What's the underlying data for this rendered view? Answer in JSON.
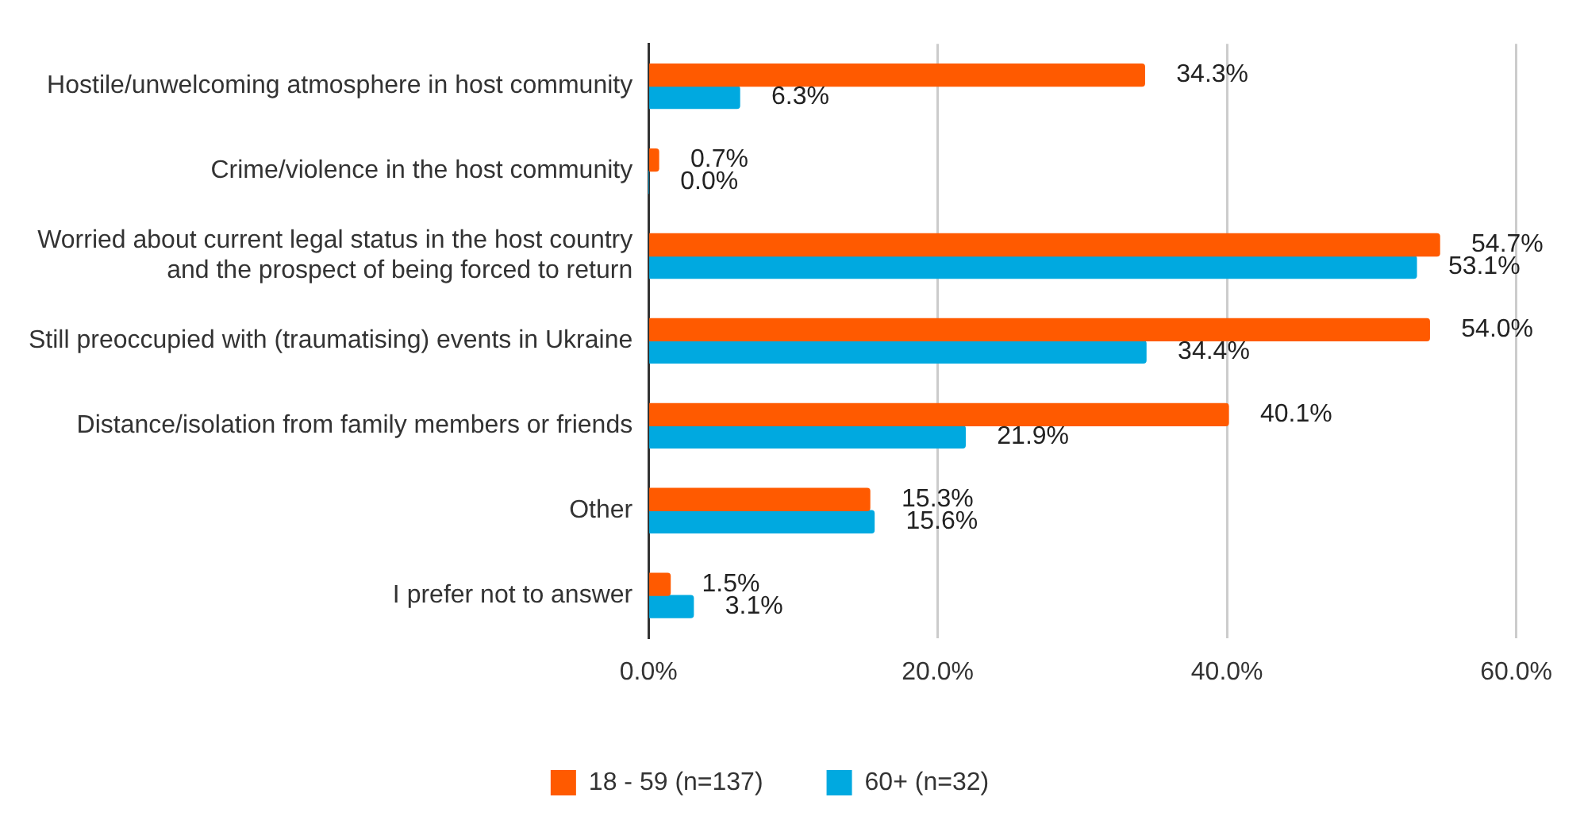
{
  "chart_data": {
    "type": "bar",
    "orientation": "horizontal",
    "categories": [
      "Hostile/unwelcoming atmosphere in host community",
      "Crime/violence in the host community",
      "Worried about current legal status in the host country and the prospect of being forced to return",
      "Still preoccupied with (traumatising) events in Ukraine",
      "Distance/isolation from family members or friends",
      "Other",
      "I prefer not to answer"
    ],
    "series": [
      {
        "name": "18 - 59 (n=137)",
        "color": "#ff5a00",
        "values": [
          34.3,
          0.7,
          54.7,
          54.0,
          40.1,
          15.3,
          1.5
        ],
        "value_labels": [
          "34.3%",
          "0.7%",
          "54.7%",
          "54.0%",
          "40.1%",
          "15.3%",
          "1.5%"
        ]
      },
      {
        "name": "60+ (n=32)",
        "color": "#00a9e0",
        "values": [
          6.3,
          0.0,
          53.1,
          34.4,
          21.9,
          15.6,
          3.1
        ],
        "value_labels": [
          "6.3%",
          "0.0%",
          "53.1%",
          "34.4%",
          "21.9%",
          "15.6%",
          "3.1%"
        ]
      }
    ],
    "xlim": [
      0,
      60
    ],
    "xticks": [
      {
        "value": 0,
        "label": "0.0%"
      },
      {
        "value": 20,
        "label": "20.0%"
      },
      {
        "value": 40,
        "label": "40.0%"
      },
      {
        "value": 60,
        "label": "60.0%"
      }
    ],
    "grid": "x",
    "legend": "bottom"
  }
}
